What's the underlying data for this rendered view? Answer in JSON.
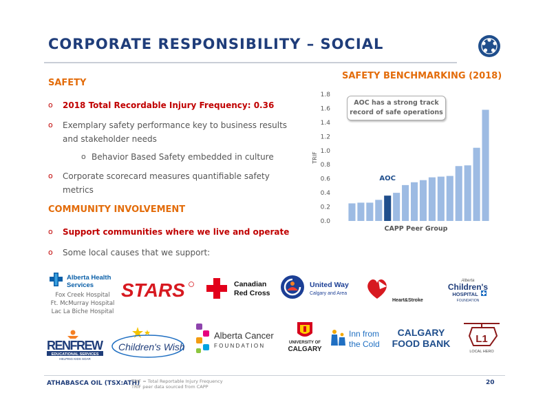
{
  "slide": {
    "title": "CORPORATE RESPONSIBILITY – SOCIAL",
    "page_number": "20"
  },
  "safety": {
    "heading": "SAFETY",
    "bullets": [
      "2018 Total Recordable Injury Frequency: 0.36",
      "Exemplary safety performance key to business results and stakeholder needs",
      "Behavior Based Safety embedded in culture",
      "Corporate scorecard measures quantifiable safety metrics"
    ]
  },
  "community": {
    "heading": "COMMUNITY INVOLVEMENT",
    "bullets": [
      "Support communities where we live and operate",
      "Some local causes that we support:"
    ]
  },
  "chart_data": {
    "type": "bar",
    "title": "SAFETY BENCHMARKING (2018)",
    "ylabel": "TRIF",
    "xlabel": "CAPP Peer Group",
    "ylim": [
      0,
      1.8
    ],
    "yticks": [
      "0.0",
      "0.2",
      "0.4",
      "0.6",
      "0.8",
      "1.0",
      "1.2",
      "1.4",
      "1.6",
      "1.8"
    ],
    "values": [
      0.25,
      0.26,
      0.26,
      0.3,
      0.36,
      0.4,
      0.51,
      0.55,
      0.58,
      0.62,
      0.63,
      0.64,
      0.78,
      0.79,
      1.04,
      1.58
    ],
    "highlight_index": 4,
    "highlight_label": "AOC",
    "callout": "AOC has a strong track record of safe operations",
    "colors": {
      "bar": "#9dbbe3",
      "highlight": "#1f4e8c",
      "label": "#1f4e8c"
    }
  },
  "logos": {
    "alberta_health": {
      "line1": "Alberta Health",
      "line2": "Services"
    },
    "hospitals": [
      "Fox Creek Hospital",
      "Ft. McMurray Hospital",
      "Lac La Biche Hospital"
    ],
    "stars": "STARS",
    "red_cross": {
      "line1": "Canadian",
      "line2": "Red Cross"
    },
    "united_way": {
      "line1": "United Way",
      "line2": "Calgary and Area"
    },
    "heart_stroke": "Heart&Stroke",
    "childrens_hospital": {
      "line1": "Alberta",
      "line2": "Children's",
      "line3": "HOSPITAL",
      "line4": "FOUNDATION"
    },
    "renfrew": {
      "line1": "RENFREW",
      "line2": "EDUCATIONAL SERVICES",
      "line3": "HELPING KIDS SOAR"
    },
    "childrens_wish": "Children's Wish",
    "alberta_cancer": {
      "line1": "Alberta Cancer",
      "line2": "FOUNDATION"
    },
    "u_calgary": {
      "line1": "UNIVERSITY OF",
      "line2": "CALGARY"
    },
    "inn_from_cold": {
      "line1": "Inn from",
      "line2": "the Cold"
    },
    "food_bank": {
      "line1": "CALGARY",
      "line2": "FOOD BANK"
    },
    "local_hero": {
      "line1": "LOCAL HERO"
    }
  },
  "footer": {
    "company": "ATHABASCA OIL (TSX:ATH)",
    "notes": [
      "TRIF = Total Reportable Injury Frequency",
      "TRIF peer data sourced from CAPP"
    ]
  },
  "colors": {
    "navy": "#1f3d7a",
    "orange": "#e36c0a",
    "red": "#c00000"
  }
}
